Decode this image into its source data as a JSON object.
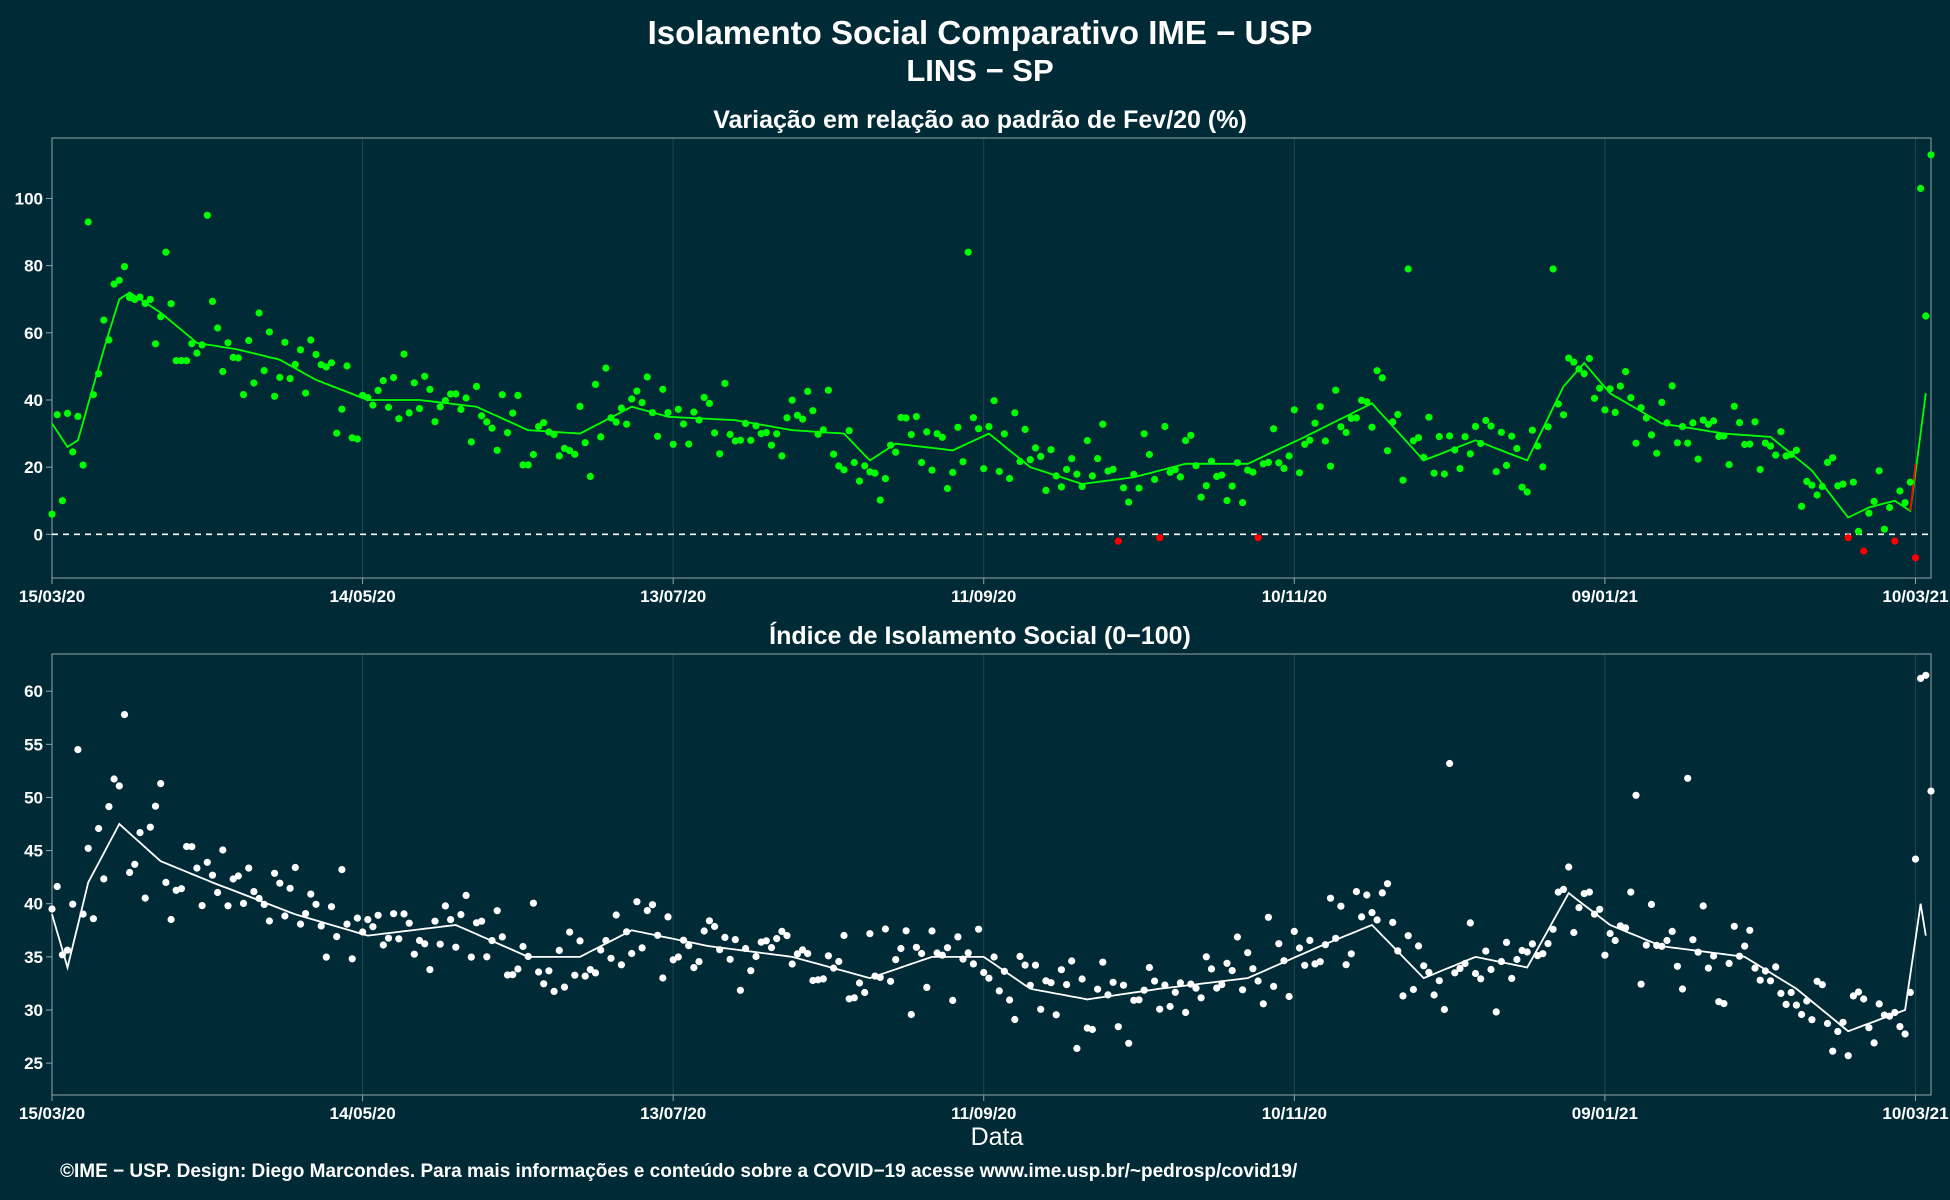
{
  "header": {
    "title": "Isolamento Social Comparativo IME − USP",
    "subtitle": "LINS − SP"
  },
  "footer": {
    "xlabel": "Data",
    "credit": "©IME − USP. Design: Diego Marcondes. Para mais informações e conteúdo sobre a COVID−19 acesse www.ime.usp.br/~pedrosp/covid19/"
  },
  "colors": {
    "background": "#002b36",
    "panel_border": "#8fa3a8",
    "grid": "#1d4651",
    "variation_points": "#00ff00",
    "variation_negative": "#ff0000",
    "index_points": "#ffffff"
  },
  "chart_data": [
    {
      "type": "scatter",
      "title": "Variação em relação ao padrão de Fev/20 (%)",
      "xlabel": "",
      "ylabel": "",
      "x_range": [
        "15/03/20",
        "13/03/21"
      ],
      "ylim": [
        -13,
        118
      ],
      "x_ticks": [
        "15/03/20",
        "14/05/20",
        "13/07/20",
        "11/09/20",
        "10/11/20",
        "09/01/21",
        "10/03/21"
      ],
      "y_ticks": [
        0,
        20,
        40,
        60,
        80,
        100
      ],
      "reference_line": 0,
      "grid": true,
      "trend_knots": [
        [
          "15/03/20",
          33
        ],
        [
          "18/03/20",
          26
        ],
        [
          "20/03/20",
          28
        ],
        [
          "25/03/20",
          55
        ],
        [
          "28/03/20",
          70
        ],
        [
          "30/03/20",
          72
        ],
        [
          "05/04/20",
          66
        ],
        [
          "12/04/20",
          57
        ],
        [
          "20/04/20",
          55
        ],
        [
          "28/04/20",
          52
        ],
        [
          "05/05/20",
          46
        ],
        [
          "15/05/20",
          40
        ],
        [
          "25/05/20",
          40
        ],
        [
          "05/06/20",
          38
        ],
        [
          "15/06/20",
          31
        ],
        [
          "25/06/20",
          30
        ],
        [
          "05/07/20",
          38
        ],
        [
          "12/07/20",
          35
        ],
        [
          "25/07/20",
          34
        ],
        [
          "05/08/20",
          31
        ],
        [
          "15/08/20",
          30
        ],
        [
          "20/08/20",
          22
        ],
        [
          "25/08/20",
          27
        ],
        [
          "05/09/20",
          25
        ],
        [
          "12/09/20",
          30
        ],
        [
          "20/09/20",
          20
        ],
        [
          "30/09/20",
          15
        ],
        [
          "10/10/20",
          17
        ],
        [
          "20/10/20",
          21
        ],
        [
          "01/11/20",
          21
        ],
        [
          "12/11/20",
          29
        ],
        [
          "25/11/20",
          39
        ],
        [
          "05/12/20",
          22
        ],
        [
          "15/12/20",
          28
        ],
        [
          "25/12/20",
          22
        ],
        [
          "01/01/21",
          44
        ],
        [
          "05/01/21",
          51
        ],
        [
          "10/01/21",
          42
        ],
        [
          "20/01/21",
          33
        ],
        [
          "01/02/21",
          30
        ],
        [
          "10/02/21",
          29
        ],
        [
          "18/02/21",
          19
        ],
        [
          "25/02/21",
          5
        ],
        [
          "01/03/21",
          8
        ],
        [
          "06/03/21",
          10
        ],
        [
          "09/03/21",
          7
        ],
        [
          "11/03/21",
          30
        ],
        [
          "12/03/21",
          42
        ]
      ],
      "negative_points": [
        [
          "07/10/20",
          -2
        ],
        [
          "15/10/20",
          -1
        ],
        [
          "03/11/20",
          -1
        ],
        [
          "25/02/21",
          -1
        ],
        [
          "28/02/21",
          -5
        ],
        [
          "06/03/21",
          -2
        ],
        [
          "10/03/21",
          -7
        ]
      ],
      "scatter_amplitude": 14,
      "notable_points": [
        [
          "15/03/20",
          6
        ],
        [
          "22/03/20",
          93
        ],
        [
          "06/04/20",
          84
        ],
        [
          "14/04/20",
          95
        ],
        [
          "08/09/20",
          84
        ],
        [
          "02/12/20",
          79
        ],
        [
          "30/12/20",
          79
        ],
        [
          "11/03/21",
          103
        ],
        [
          "12/03/21",
          65
        ],
        [
          "13/03/21",
          113
        ]
      ]
    },
    {
      "type": "scatter",
      "title": "Índice de Isolamento Social (0−100)",
      "xlabel": "Data",
      "ylabel": "",
      "x_range": [
        "15/03/20",
        "13/03/21"
      ],
      "ylim": [
        22,
        63.5
      ],
      "x_ticks": [
        "15/03/20",
        "14/05/20",
        "13/07/20",
        "11/09/20",
        "10/11/20",
        "09/01/21",
        "10/03/21"
      ],
      "y_ticks": [
        25,
        30,
        35,
        40,
        45,
        50,
        55,
        60
      ],
      "grid": true,
      "trend_knots": [
        [
          "15/03/20",
          39
        ],
        [
          "18/03/20",
          34
        ],
        [
          "22/03/20",
          42
        ],
        [
          "28/03/20",
          47.5
        ],
        [
          "05/04/20",
          44
        ],
        [
          "15/04/20",
          42
        ],
        [
          "01/05/20",
          39
        ],
        [
          "15/05/20",
          37
        ],
        [
          "01/06/20",
          38
        ],
        [
          "15/06/20",
          35
        ],
        [
          "25/06/20",
          35
        ],
        [
          "05/07/20",
          37.5
        ],
        [
          "20/07/20",
          36
        ],
        [
          "05/08/20",
          35
        ],
        [
          "20/08/20",
          33
        ],
        [
          "01/09/20",
          35
        ],
        [
          "11/09/20",
          35
        ],
        [
          "20/09/20",
          32
        ],
        [
          "01/10/20",
          31
        ],
        [
          "15/10/20",
          32
        ],
        [
          "01/11/20",
          33
        ],
        [
          "15/11/20",
          36
        ],
        [
          "25/11/20",
          38
        ],
        [
          "05/12/20",
          33
        ],
        [
          "15/12/20",
          35
        ],
        [
          "25/12/20",
          34
        ],
        [
          "02/01/21",
          41
        ],
        [
          "10/01/21",
          38
        ],
        [
          "20/01/21",
          36
        ],
        [
          "05/02/21",
          35
        ],
        [
          "15/02/21",
          32
        ],
        [
          "25/02/21",
          28
        ],
        [
          "08/03/21",
          30
        ],
        [
          "11/03/21",
          40
        ],
        [
          "12/03/21",
          37
        ],
        [
          "13/03/21",
          35
        ]
      ],
      "scatter_amplitude": 4.5,
      "notable_points": [
        [
          "15/03/20",
          39.5
        ],
        [
          "20/03/20",
          54.5
        ],
        [
          "29/03/20",
          57.8
        ],
        [
          "05/04/20",
          51.3
        ],
        [
          "10/12/20",
          53.2
        ],
        [
          "15/01/21",
          50.2
        ],
        [
          "25/01/21",
          51.8
        ],
        [
          "10/03/21",
          44.2
        ],
        [
          "13/03/21",
          50.6
        ],
        [
          "11/03/21",
          61.2
        ],
        [
          "12/03/21",
          61.5
        ]
      ]
    }
  ]
}
